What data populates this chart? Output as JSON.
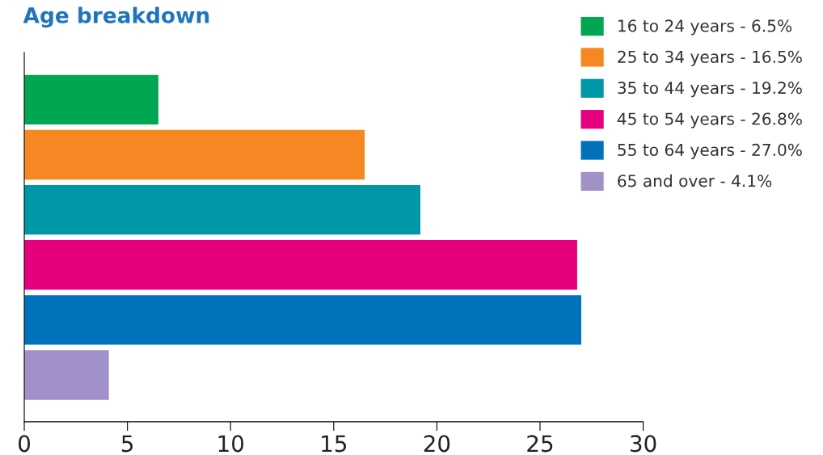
{
  "chart_data": {
    "type": "bar",
    "orientation": "horizontal",
    "title": "Age breakdown",
    "categories": [
      null,
      null,
      null,
      null,
      null,
      null
    ],
    "series": [
      {
        "name": "16 to 24 years - 6.5%",
        "color": "#00a651",
        "values": [
          6.5,
          null,
          null,
          null,
          null,
          null
        ]
      },
      {
        "name": "25 to 34 years - 16.5%",
        "color": "#f58823",
        "values": [
          null,
          16.5,
          null,
          null,
          null,
          null
        ]
      },
      {
        "name": "35 to 44 years - 19.2%",
        "color": "#0097a7",
        "values": [
          null,
          null,
          19.2,
          null,
          null,
          null
        ]
      },
      {
        "name": "45 to 54 years - 26.8%",
        "color": "#e6007e",
        "values": [
          null,
          null,
          null,
          26.8,
          null,
          null
        ]
      },
      {
        "name": "55 to 64 years - 27.0%",
        "color": "#0072bc",
        "values": [
          null,
          null,
          null,
          null,
          27.0,
          null
        ]
      },
      {
        "name": "65 and over - 4.1%",
        "color": "#a191c8",
        "values": [
          null,
          null,
          null,
          null,
          null,
          4.1
        ]
      }
    ],
    "xlim": [
      0,
      30
    ],
    "xticks": [
      0,
      5,
      10,
      15,
      20,
      25,
      30
    ],
    "grid": false,
    "legend": "top right",
    "tick_labels": "x"
  }
}
